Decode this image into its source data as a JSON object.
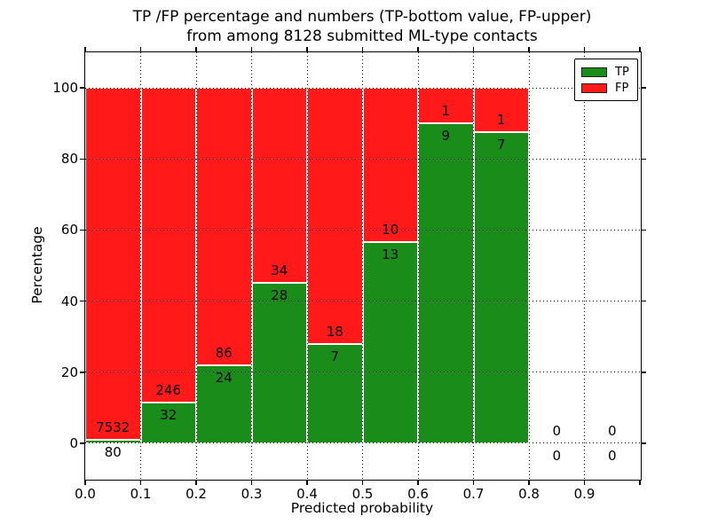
{
  "title": {
    "line1": "TP /FP percentage and numbers (TP-bottom value, FP-upper)",
    "line2": "from among 8128 submitted ML-type contacts"
  },
  "chart_data": {
    "type": "bar",
    "stacked": true,
    "normalized": "each bar scaled to 100%",
    "title": "TP /FP percentage and numbers (TP-bottom value, FP-upper) from among 8128 submitted ML-type contacts",
    "xlabel": "Predicted probability",
    "ylabel": "Percentage",
    "bin_edges": [
      0.0,
      0.1,
      0.2,
      0.3,
      0.4,
      0.5,
      0.6,
      0.7,
      0.8,
      0.9,
      1.0
    ],
    "categories": [
      "0.0-0.1",
      "0.1-0.2",
      "0.2-0.3",
      "0.3-0.4",
      "0.4-0.5",
      "0.5-0.6",
      "0.6-0.7",
      "0.7-0.8",
      "0.8-0.9",
      "0.9-1.0"
    ],
    "series": [
      {
        "name": "TP",
        "color": "#198c19",
        "counts": [
          80,
          32,
          24,
          28,
          7,
          13,
          9,
          7,
          0,
          0
        ]
      },
      {
        "name": "FP",
        "color": "#ff1919",
        "counts": [
          7532,
          246,
          86,
          34,
          18,
          10,
          1,
          1,
          0,
          0
        ]
      }
    ],
    "total_contacts": 8128,
    "xlim": [
      0.0,
      1.0
    ],
    "ylim": [
      -10,
      110
    ],
    "xtick_labels": [
      "0.0",
      "0.1",
      "0.2",
      "0.3",
      "0.4",
      "0.5",
      "0.6",
      "0.7",
      "0.8",
      "0.9"
    ],
    "ytick_values": [
      0,
      20,
      40,
      60,
      80,
      100
    ],
    "grid": true,
    "grid_style": "dotted",
    "legend_position": "upper right"
  },
  "legend": {
    "items": [
      {
        "label": "TP",
        "color": "#198c19"
      },
      {
        "label": "FP",
        "color": "#ff1919"
      }
    ]
  }
}
